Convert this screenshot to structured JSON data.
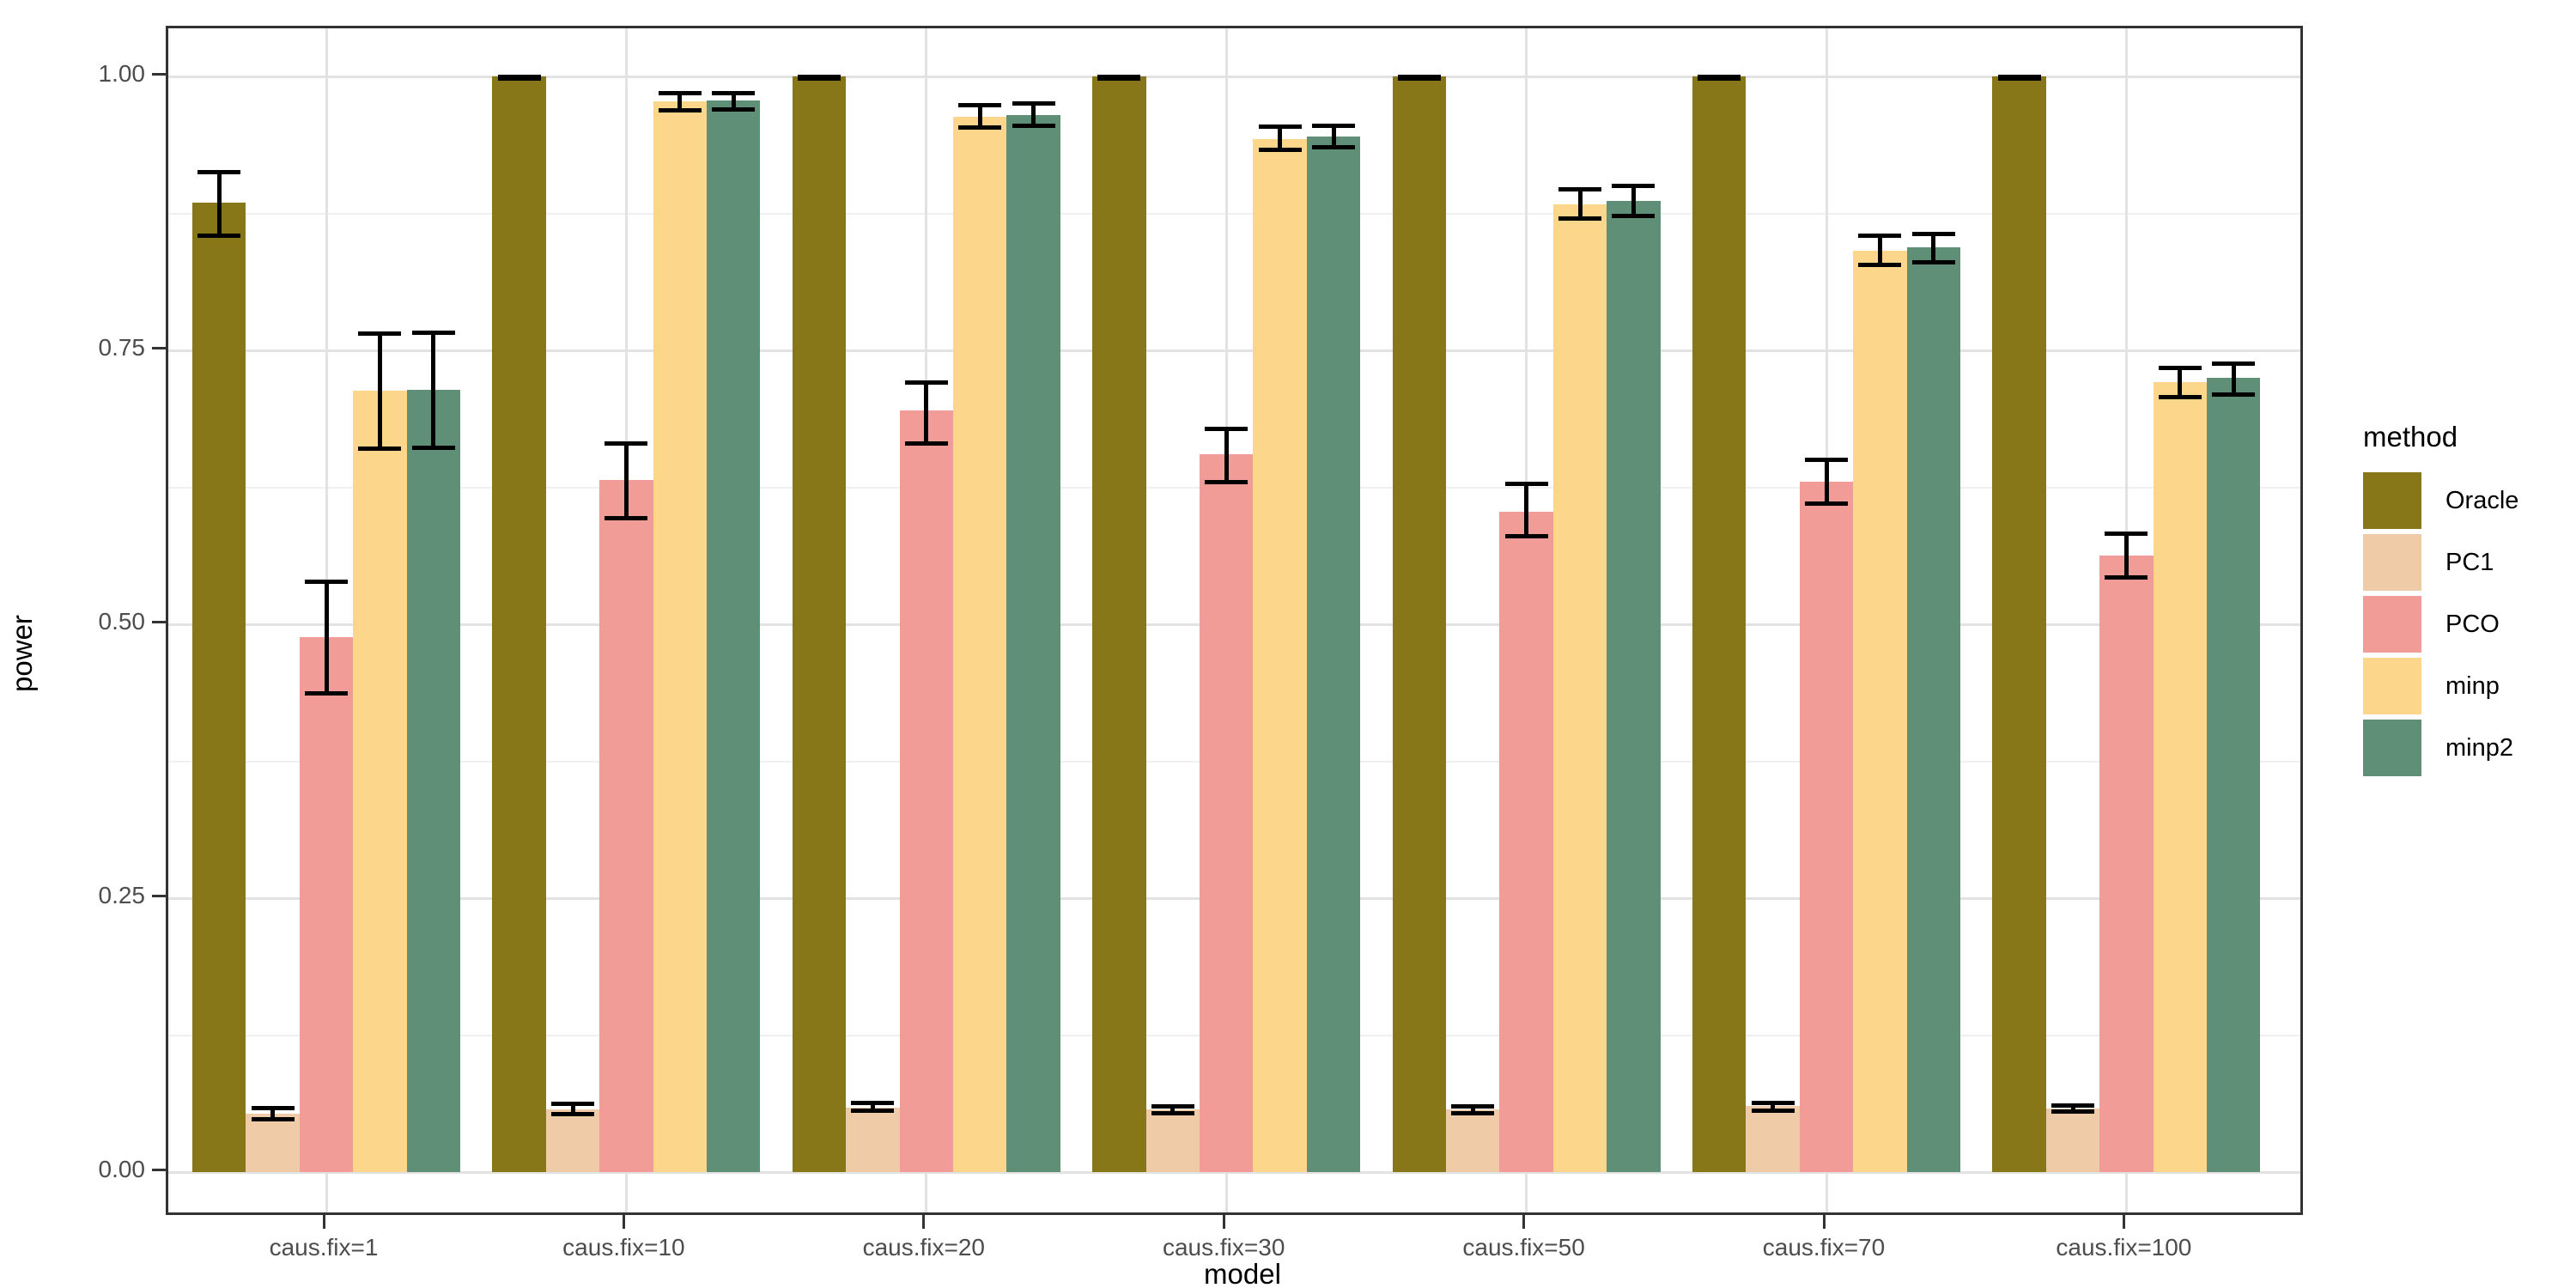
{
  "figure": {
    "background": "#FFFFFF"
  },
  "chart_data": {
    "type": "bar",
    "title": "",
    "xlabel": "model",
    "ylabel": "power",
    "categories": [
      "caus.fix=1",
      "caus.fix=10",
      "caus.fix=20",
      "caus.fix=30",
      "caus.fix=50",
      "caus.fix=70",
      "caus.fix=100"
    ],
    "y_ticks": [
      "0.00",
      "0.25",
      "0.50",
      "0.75",
      "1.00"
    ],
    "y_tick_values": [
      0,
      0.25,
      0.5,
      0.75,
      1.0
    ],
    "y_minor_values": [
      0.125,
      0.375,
      0.625,
      0.875
    ],
    "ylim": [
      0,
      1
    ],
    "grid": "major+minor horizontal, major vertical at category centers",
    "legend": {
      "title": "method",
      "position": "right"
    },
    "series": [
      {
        "name": "Oracle",
        "color": "#877718",
        "values": [
          0.885,
          1.0,
          1.0,
          1.0,
          1.0,
          1.0,
          1.0
        ],
        "err_low": [
          0.855,
          0.998,
          0.998,
          0.998,
          0.998,
          0.998,
          0.998
        ],
        "err_high": [
          0.913,
          1.0,
          1.0,
          1.0,
          1.0,
          1.0,
          1.0
        ]
      },
      {
        "name": "PC1",
        "color": "#EFCBA8",
        "values": [
          0.053,
          0.057,
          0.059,
          0.057,
          0.057,
          0.06,
          0.058
        ],
        "err_low": [
          0.048,
          0.053,
          0.056,
          0.054,
          0.054,
          0.056,
          0.055
        ],
        "err_high": [
          0.058,
          0.062,
          0.063,
          0.06,
          0.06,
          0.063,
          0.061
        ]
      },
      {
        "name": "PCO",
        "color": "#F29C98",
        "values": [
          0.488,
          0.632,
          0.695,
          0.655,
          0.603,
          0.63,
          0.563
        ],
        "err_low": [
          0.437,
          0.597,
          0.665,
          0.63,
          0.58,
          0.61,
          0.543
        ],
        "err_high": [
          0.539,
          0.665,
          0.721,
          0.678,
          0.628,
          0.65,
          0.583
        ]
      },
      {
        "name": "minp",
        "color": "#FBD68B",
        "values": [
          0.713,
          0.977,
          0.963,
          0.943,
          0.883,
          0.841,
          0.721
        ],
        "err_low": [
          0.66,
          0.969,
          0.953,
          0.933,
          0.87,
          0.828,
          0.707
        ],
        "err_high": [
          0.765,
          0.985,
          0.974,
          0.954,
          0.897,
          0.855,
          0.734
        ]
      },
      {
        "name": "minp2",
        "color": "#5F9077",
        "values": [
          0.714,
          0.978,
          0.965,
          0.945,
          0.886,
          0.844,
          0.725
        ],
        "err_low": [
          0.661,
          0.97,
          0.955,
          0.935,
          0.873,
          0.83,
          0.71
        ],
        "err_high": [
          0.766,
          0.985,
          0.975,
          0.955,
          0.9,
          0.856,
          0.738
        ]
      }
    ]
  },
  "style": {
    "panel_border": "#333333",
    "grid_major": "#E2E2E2",
    "grid_minor": "#EFEFEF",
    "tick_label_color": "#4D4D4D",
    "axis_title_color": "#000000",
    "errorbar_color": "#000000"
  }
}
